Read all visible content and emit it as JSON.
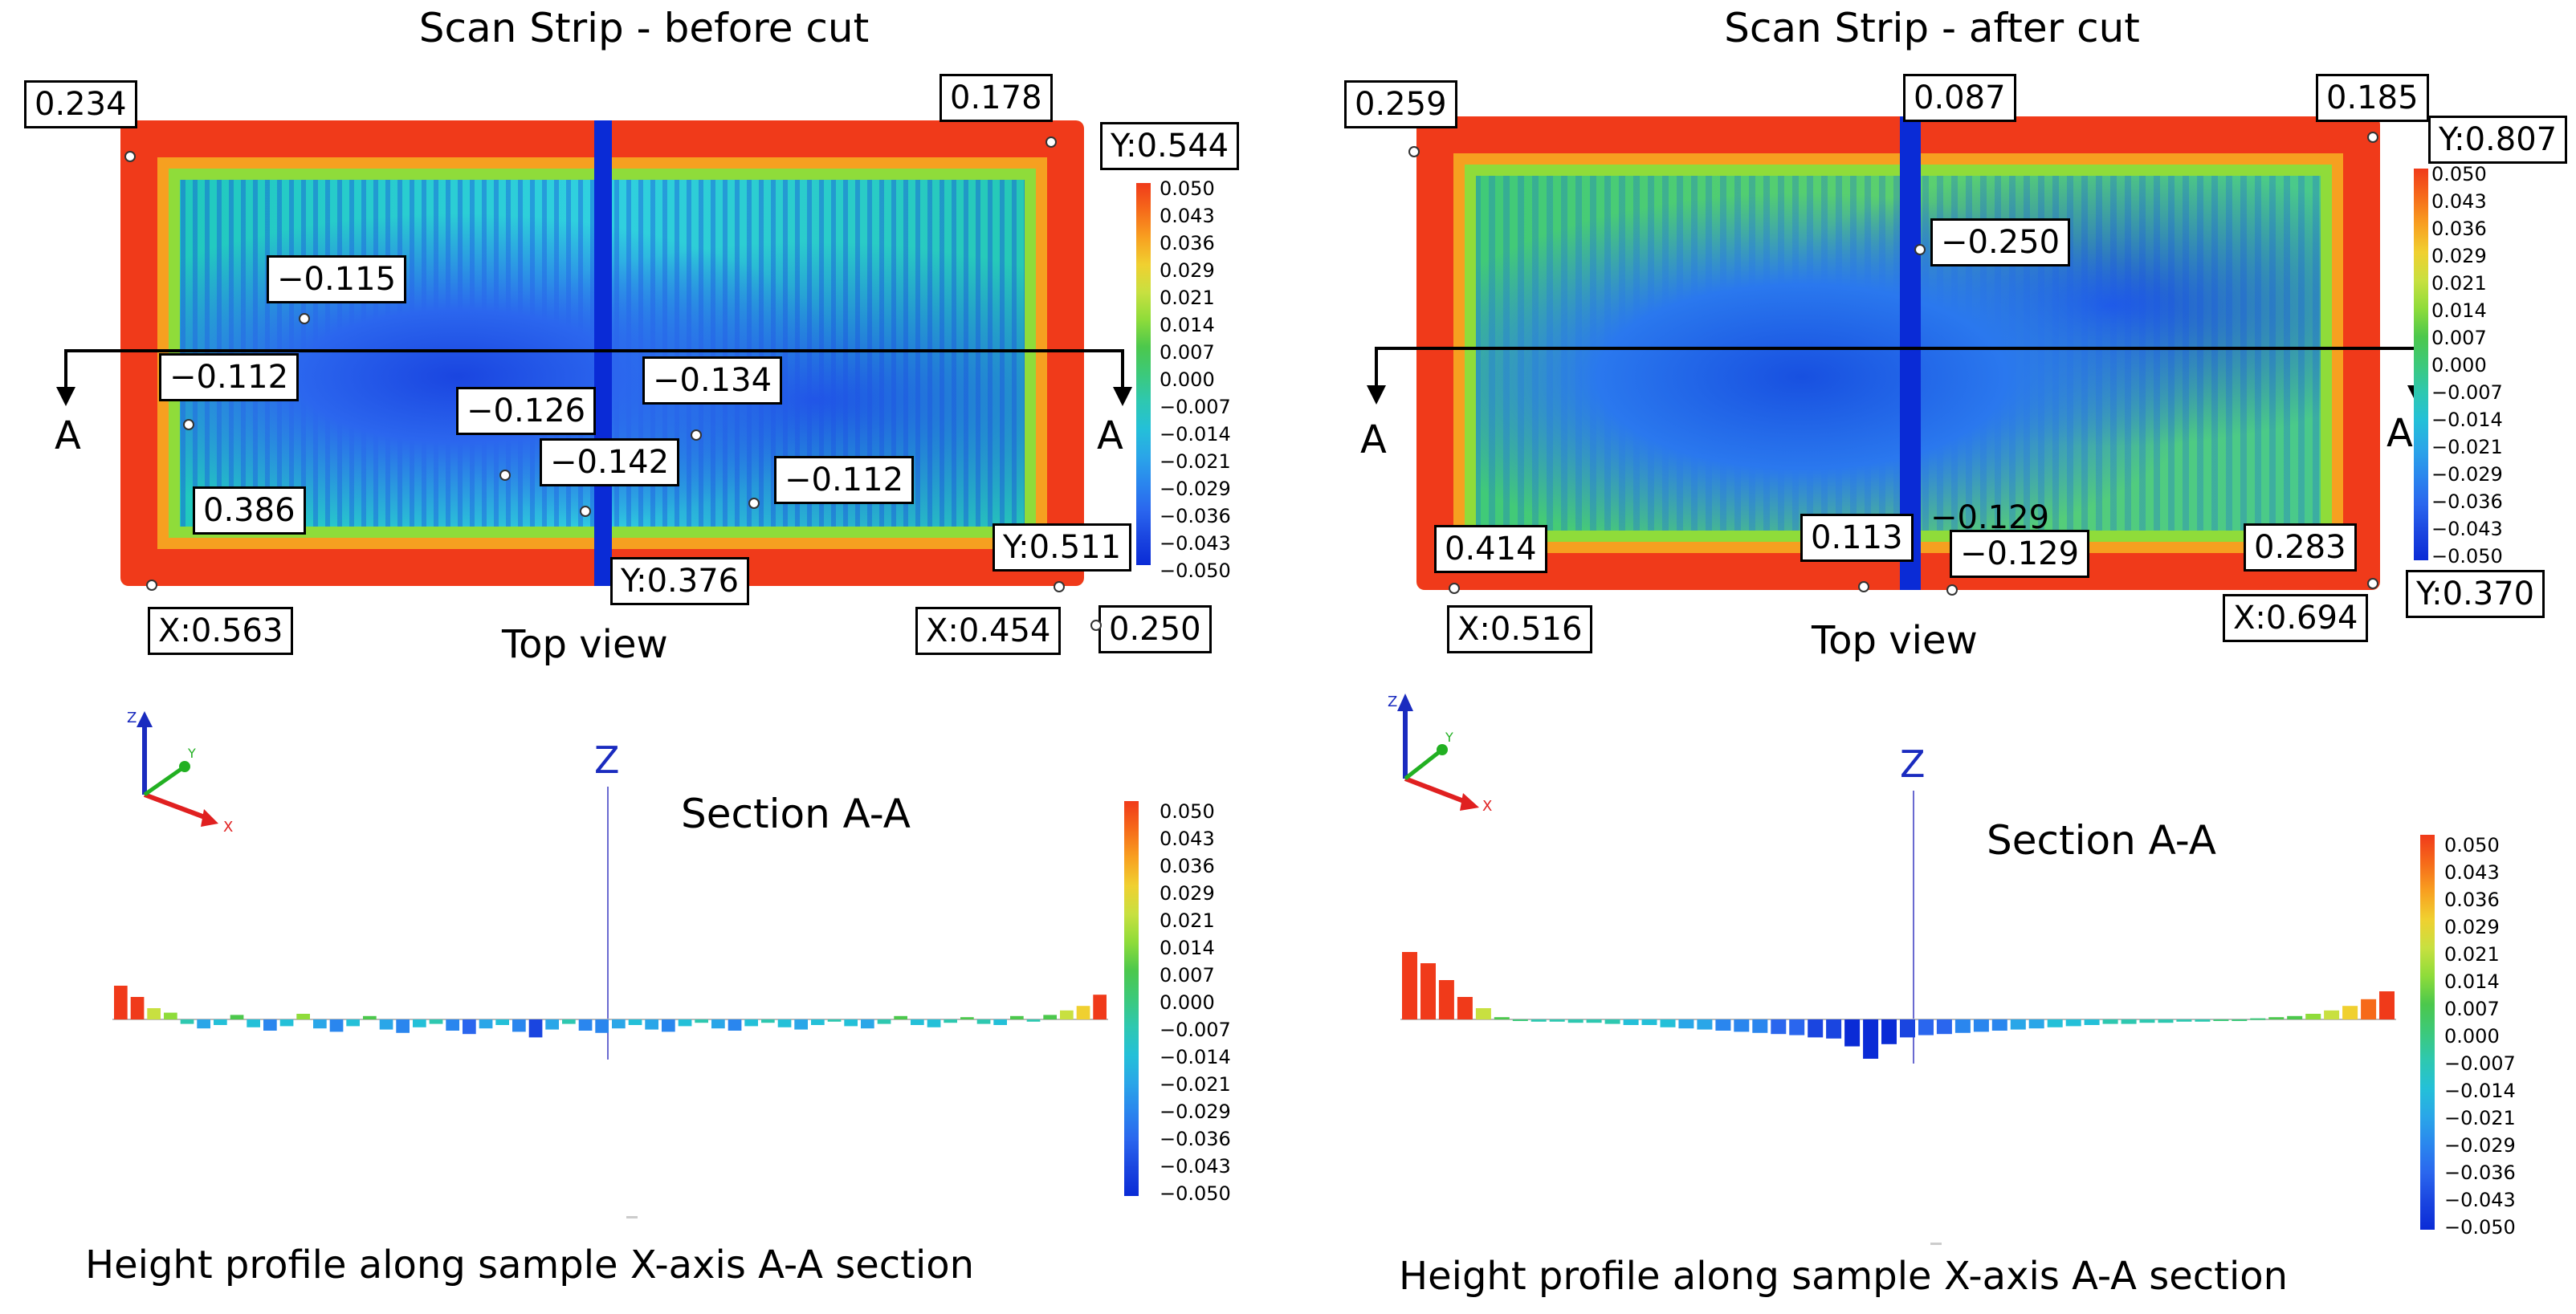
{
  "left": {
    "title": "Scan Strip - before cut",
    "top_view_caption": "Top view",
    "section_marker": "A",
    "labels": {
      "tl": "0.234",
      "tr": "0.178",
      "y_top": "Y:0.544",
      "m1": "−0.115",
      "m2": "−0.112",
      "m3": "−0.126",
      "m4": "−0.134",
      "m5": "−0.142",
      "m6": "−0.112",
      "bl": "0.386",
      "y_mid": "Y:0.376",
      "y_br": "Y:0.511",
      "x_left": "X:0.563",
      "x_right": "X:0.454",
      "br_val": "0.250"
    },
    "axes": {
      "z": "Z",
      "y": "Y",
      "x": "X"
    },
    "z_marker": "Z",
    "section_title": "Section A-A",
    "profile_caption": "Height profile along sample X-axis A-A section"
  },
  "right": {
    "title": "Scan Strip - after cut",
    "top_view_caption": "Top view",
    "section_marker": "A",
    "labels": {
      "tl": "0.259",
      "tm": "0.087",
      "tr": "0.185",
      "y_top": "Y:0.807",
      "m1": "−0.250",
      "bl": "0.414",
      "bm": "0.113",
      "m2": "−0.129",
      "m3": "−0.129",
      "br": "0.283",
      "x_left": "X:0.516",
      "x_right": "X:0.694",
      "y_bottom": "Y:0.370"
    },
    "axes": {
      "z": "Z",
      "y": "Y",
      "x": "X"
    },
    "z_marker": "Z",
    "section_title": "Section A-A",
    "profile_caption": "Height profile along sample X-axis A-A section"
  },
  "colorbar": {
    "ticks": [
      "0.050",
      "0.043",
      "0.036",
      "0.029",
      "0.021",
      "0.014",
      "0.007",
      "0.000",
      "−0.007",
      "−0.014",
      "−0.021",
      "−0.029",
      "−0.036",
      "−0.043",
      "−0.050"
    ],
    "colors": [
      "#f03a1a",
      "#f66a1a",
      "#f8a020",
      "#f0d030",
      "#c8e040",
      "#8fdc3a",
      "#4cc84c",
      "#3cc97a",
      "#2ec8b0",
      "#24c0d8",
      "#2aa6e8",
      "#2a86ee",
      "#2a66ee",
      "#1a45e0",
      "#0a2bd6"
    ]
  },
  "profiles": {
    "before": [
      3,
      2,
      1,
      0.6,
      -0.4,
      -0.8,
      -0.5,
      0.4,
      -0.7,
      -1,
      -0.6,
      0.5,
      -0.8,
      -1.1,
      -0.6,
      0.3,
      -0.9,
      -1.2,
      -0.7,
      -0.4,
      -1,
      -1.3,
      -0.8,
      -0.5,
      -1.1,
      -1.6,
      -0.9,
      -0.4,
      -1,
      -1.2,
      -0.8,
      -0.5,
      -0.9,
      -1.1,
      -0.6,
      -0.3,
      -0.8,
      -1,
      -0.6,
      -0.3,
      -0.7,
      -0.9,
      -0.5,
      -0.2,
      -0.6,
      -0.8,
      -0.4,
      0.3,
      -0.5,
      -0.7,
      -0.3,
      0.2,
      -0.4,
      -0.5,
      0.3,
      -0.2,
      0.4,
      0.8,
      1.2,
      2.2
    ],
    "after": [
      6,
      5,
      3.5,
      2,
      1,
      0.2,
      -0.1,
      -0.2,
      -0.2,
      -0.3,
      -0.3,
      -0.4,
      -0.5,
      -0.5,
      -0.7,
      -0.8,
      -0.9,
      -1,
      -1.1,
      -1.2,
      -1.3,
      -1.4,
      -1.6,
      -1.7,
      -2.4,
      -3.5,
      -2.2,
      -1.6,
      -1.4,
      -1.3,
      -1.2,
      -1.1,
      -1,
      -0.9,
      -0.8,
      -0.7,
      -0.6,
      -0.5,
      -0.4,
      -0.4,
      -0.3,
      -0.3,
      -0.2,
      -0.2,
      -0.1,
      0,
      0.1,
      0.2,
      0.3,
      0.5,
      0.8,
      1.2,
      1.8,
      2.5
    ]
  }
}
